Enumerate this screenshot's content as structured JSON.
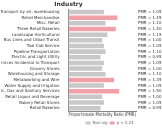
{
  "chart_data": {
    "type": "bar",
    "orientation": "horizontal",
    "title": "Industry",
    "x_label": "Proportionate Mortality Ratio (PMR)",
    "categories": [
      "* Transport by air, warehousing",
      "Retail Merchandise",
      "Misc. Retail",
      "Three Retail Bakeries",
      "Landscape Horticultural",
      "Bus Lines and Urban Transit",
      "Taxi Cab Service",
      "Pipeline Transportation",
      "Electric and Light Utility",
      "Services Incidental to Transport",
      "Grocery Stores",
      "Warehousing and Storage",
      "Metalworking and Wire",
      "Water Supply and Irrigation",
      "Electric, Gas and Sanitary Services",
      "Retail Liquor and Beverage",
      "Bakery Retail Stores",
      "Retail Bakeries"
    ],
    "series": [
      {
        "name": "Non-sig",
        "color": "#c8c8c8",
        "values": [
          1.05,
          null,
          1.1,
          null,
          1.15,
          1.0,
          1.05,
          1.1,
          0.95,
          1.05,
          1.0,
          1.1,
          null,
          1.05,
          null,
          1.0,
          1.05,
          0.95
        ],
        "value_labels": [
          "PMR = 1.05",
          null,
          "PMR = 1.10",
          null,
          "PMR = 1.15",
          "PMR = 1.00",
          "PMR = 1.05",
          "PMR = 1.10",
          "PMR = 0.95",
          "PMR = 1.05",
          "PMR = 1.00",
          "PMR = 1.10",
          null,
          "PMR = 1.05",
          null,
          "PMR = 1.00",
          "PMR = 1.05",
          "PMR = 0.95"
        ]
      },
      {
        "name": "p < 0.01",
        "color": "#f2a0a8",
        "values": [
          null,
          1.45,
          null,
          1.4,
          null,
          null,
          null,
          null,
          null,
          null,
          null,
          null,
          1.35,
          null,
          1.5,
          null,
          null,
          null
        ],
        "value_labels": [
          null,
          "PMR = 1.45",
          null,
          "PMR = 1.40",
          null,
          null,
          null,
          null,
          null,
          null,
          null,
          null,
          "PMR = 1.35",
          null,
          "PMR = 1.50",
          null,
          null,
          null
        ]
      }
    ],
    "xlim": [
      0,
      2
    ],
    "tick_labels": "y",
    "grid": false,
    "legend": "bottom-right",
    "data_labels": true
  }
}
